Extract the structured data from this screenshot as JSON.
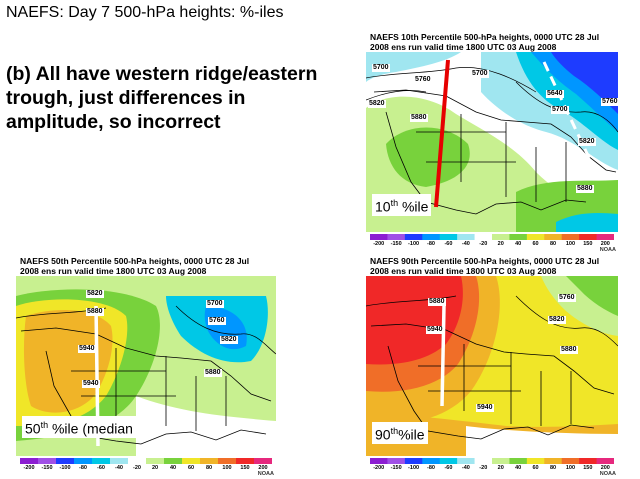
{
  "slide": {
    "title": "NAEFS:  Day 7 500-hPa heights: %-iles",
    "statement": "(b) All have western ridge/eastern trough, just differences in amplitude, so incorrect"
  },
  "colorbar": {
    "ticks": [
      "-200",
      "-150",
      "-100",
      "-80",
      "-60",
      "-40",
      "-20",
      "20",
      "40",
      "60",
      "80",
      "100",
      "150",
      "200"
    ],
    "colors": [
      "#8c1ed2",
      "#a050e6",
      "#1e3cff",
      "#0096ff",
      "#00c8e6",
      "#a0e6f0",
      "#ffffff",
      "#c8f090",
      "#78d23c",
      "#f0e628",
      "#f0b428",
      "#f06e28",
      "#f02828",
      "#e6287d"
    ],
    "credit": "NOAA"
  },
  "panels": {
    "p10": {
      "header1": "NAEFS 10th Percentile 500-hPa heights, 0000 UTC  28 Jul",
      "header2": "2008 ens run valid time 1800 UTC  03 Aug 2008",
      "label_num": "10",
      "label_sup": "th",
      "label_text": " %ile",
      "contours": [
        "5700",
        "5760",
        "5700",
        "5820",
        "5880",
        "5640",
        "5700",
        "5760",
        "5820",
        "5880"
      ]
    },
    "p50": {
      "header1": "NAEFS 50th Percentile 500-hPa heights, 0000 UTC  28 Jul",
      "header2": "2008 ens run valid time 1800 UTC  03 Aug 2008",
      "label_num": "50",
      "label_sup": "th",
      "label_text": " %ile (median",
      "contours": [
        "5820",
        "5880",
        "5940",
        "5940",
        "5700",
        "5760",
        "5820",
        "5880"
      ]
    },
    "p90": {
      "header1": "NAEFS 90th Percentile 500-hPa heights, 0000 UTC  28 Jul",
      "header2": "2008 ens run valid time 1800 UTC  03 Aug 2008",
      "label_num": "90",
      "label_sup": "th",
      "label_text": "%ile",
      "contours": [
        "5880",
        "5940",
        "5760",
        "5820",
        "5880",
        "5940"
      ]
    }
  }
}
